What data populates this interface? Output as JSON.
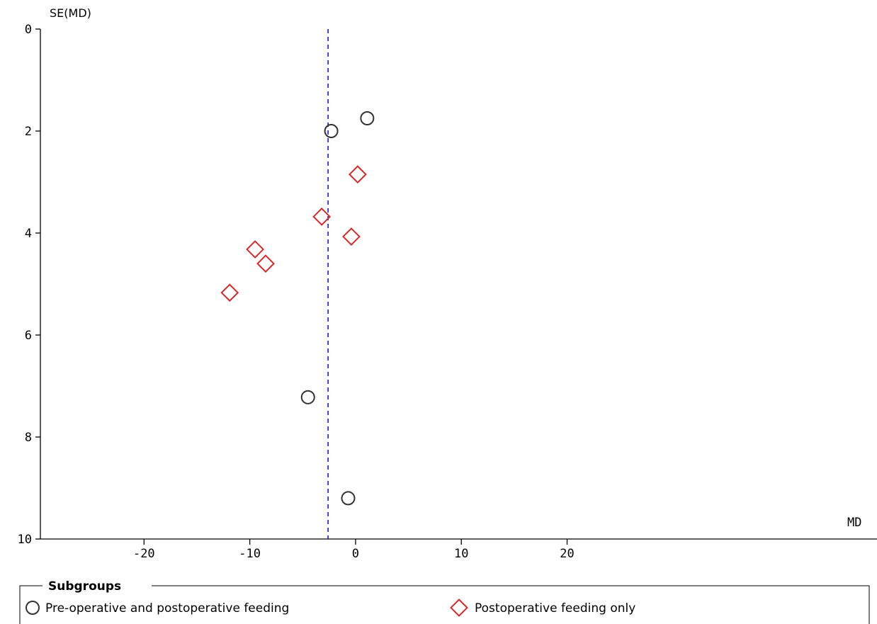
{
  "chart_data": {
    "type": "scatter",
    "title": "",
    "xlabel": "MD",
    "ylabel": "SE(MD)",
    "xlim": [
      -29.8,
      49.3
    ],
    "ylim": [
      0,
      10
    ],
    "y_inverted": true,
    "x_ticks": [
      -20,
      -10,
      0,
      10,
      20
    ],
    "y_ticks": [
      0,
      2,
      4,
      6,
      8,
      10
    ],
    "x_tick_labels": [
      "-20",
      "-10",
      "0",
      "10",
      "20"
    ],
    "y_tick_labels": [
      "0",
      "2",
      "4",
      "6",
      "8",
      "10"
    ],
    "pooled_estimate": -2.6,
    "pooled_line_style": "dashed",
    "grid": false,
    "legend": {
      "title": "Subgroups",
      "placement": "bottom"
    },
    "series": [
      {
        "name": "Pre-operative and postoperative feeding",
        "marker": "circle",
        "color": "#333333",
        "points": [
          {
            "x": 1.1,
            "y": 1.75
          },
          {
            "x": -2.3,
            "y": 2.0
          },
          {
            "x": -4.5,
            "y": 7.22
          },
          {
            "x": -0.7,
            "y": 9.2
          }
        ]
      },
      {
        "name": "Postoperative feeding only",
        "marker": "diamond",
        "color": "#d42a2a",
        "points": [
          {
            "x": 0.2,
            "y": 2.85
          },
          {
            "x": -3.2,
            "y": 3.68
          },
          {
            "x": -0.4,
            "y": 4.07
          },
          {
            "x": -9.5,
            "y": 4.32
          },
          {
            "x": -8.5,
            "y": 4.6
          },
          {
            "x": -11.9,
            "y": 5.17
          }
        ]
      }
    ]
  }
}
